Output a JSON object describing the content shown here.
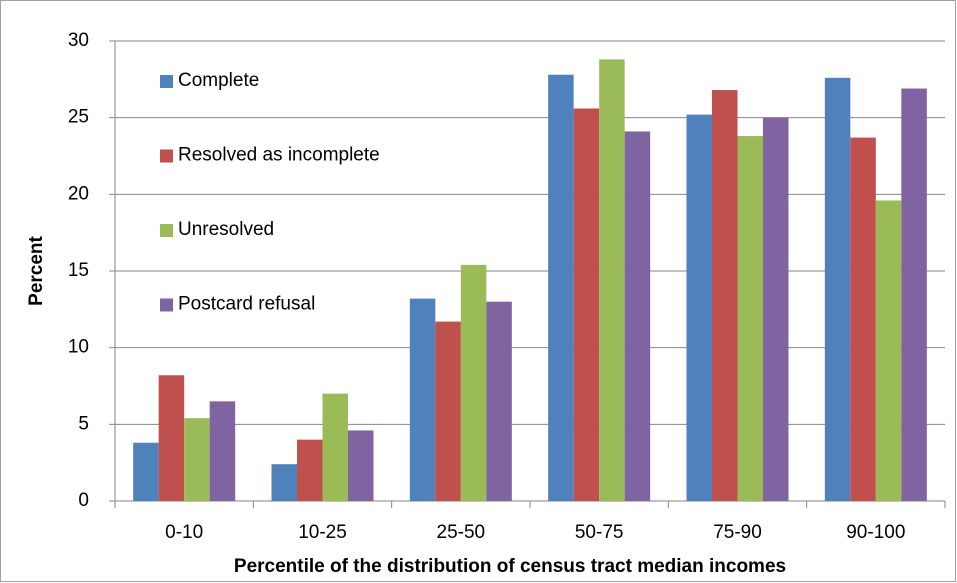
{
  "chart_data": {
    "type": "bar",
    "x_label": "Percentile of the distribution of census tract median incomes",
    "y_label": "Percent",
    "categories": [
      "0-10",
      "10-25",
      "25-50",
      "50-75",
      "75-90",
      "90-100"
    ],
    "series": [
      {
        "name": "Complete",
        "color": "#4f81bd",
        "values": [
          3.8,
          2.4,
          13.2,
          27.8,
          25.2,
          27.6
        ]
      },
      {
        "name": "Resolved as incomplete",
        "color": "#c0504d",
        "values": [
          8.2,
          4.0,
          11.7,
          25.6,
          26.8,
          23.7
        ]
      },
      {
        "name": "Unresolved",
        "color": "#9bbb59",
        "values": [
          5.4,
          7.0,
          15.4,
          28.8,
          23.8,
          19.6
        ]
      },
      {
        "name": "Postcard refusal",
        "color": "#8064a2",
        "values": [
          6.5,
          4.6,
          13.0,
          24.1,
          25.0,
          26.9
        ]
      }
    ],
    "ylim": [
      0,
      30
    ],
    "yticks": [
      0,
      5,
      10,
      15,
      20,
      25,
      30
    ],
    "grid": true,
    "legend": "upper left"
  }
}
